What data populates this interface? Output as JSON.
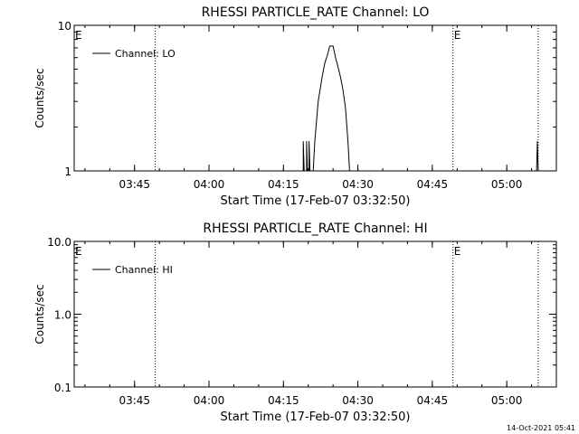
{
  "colors": {
    "background": "#ffffff",
    "foreground": "#000000"
  },
  "footer": {
    "timestamp": "14-Oct-2021 05:41"
  },
  "chart_data": [
    {
      "type": "line",
      "title": "RHESSI PARTICLE_RATE Channel: LO",
      "xlabel": "Start Time (17-Feb-07 03:32:50)",
      "ylabel": "Counts/sec",
      "y_scale": "log",
      "ylim": [
        1,
        10
      ],
      "y_ticks": [
        1,
        10
      ],
      "y_tick_labels": [
        "1",
        "10"
      ],
      "xlim": [
        "03:32:50",
        "05:10:00"
      ],
      "x_ticks": [
        "03:45",
        "04:00",
        "04:15",
        "04:30",
        "04:45",
        "05:00"
      ],
      "event_lines": [
        "03:49:10",
        "04:49:10",
        "05:06:20"
      ],
      "event_markers": [
        {
          "time": "03:32:50",
          "label": "E"
        },
        {
          "time": "04:49:10",
          "label": "E"
        }
      ],
      "legend": {
        "position": "top-left",
        "entries": [
          "Channel: LO"
        ]
      },
      "series": [
        {
          "name": "Channel: LO",
          "points": [
            [
              "04:19:00",
              1.0
            ],
            [
              "04:19:00",
              1.6
            ],
            [
              "04:19:10",
              1.0
            ],
            [
              "04:19:40",
              1.0
            ],
            [
              "04:19:40",
              1.6
            ],
            [
              "04:19:50",
              1.0
            ],
            [
              "04:20:10",
              1.0
            ],
            [
              "04:20:10",
              1.6
            ],
            [
              "04:20:20",
              1.0
            ],
            [
              "04:21:00",
              1.0
            ],
            [
              "04:21:20",
              1.6
            ],
            [
              "04:22:00",
              3.0
            ],
            [
              "04:22:50",
              4.5
            ],
            [
              "04:23:20",
              5.5
            ],
            [
              "04:23:50",
              6.2
            ],
            [
              "04:24:20",
              7.2
            ],
            [
              "04:25:00",
              7.2
            ],
            [
              "04:25:30",
              6.0
            ],
            [
              "04:26:00",
              5.2
            ],
            [
              "04:26:30",
              4.4
            ],
            [
              "04:27:00",
              3.6
            ],
            [
              "04:27:30",
              2.7
            ],
            [
              "04:28:00",
              1.6
            ],
            [
              "04:28:20",
              1.0
            ],
            [
              "05:06:00",
              1.0
            ],
            [
              "05:06:10",
              1.6
            ],
            [
              "05:06:20",
              1.0
            ]
          ]
        }
      ]
    },
    {
      "type": "line",
      "title": "RHESSI PARTICLE_RATE Channel: HI",
      "xlabel": "Start Time (17-Feb-07 03:32:50)",
      "ylabel": "Counts/sec",
      "y_scale": "log",
      "ylim": [
        0.1,
        10
      ],
      "y_ticks": [
        0.1,
        1,
        10
      ],
      "y_tick_labels": [
        "0.1",
        "1.0",
        "10.0"
      ],
      "xlim": [
        "03:32:50",
        "05:10:00"
      ],
      "x_ticks": [
        "03:45",
        "04:00",
        "04:15",
        "04:30",
        "04:45",
        "05:00"
      ],
      "event_lines": [
        "03:49:10",
        "04:49:10",
        "05:06:20"
      ],
      "event_markers": [
        {
          "time": "03:32:50",
          "label": "E"
        },
        {
          "time": "04:49:10",
          "label": "E"
        }
      ],
      "legend": {
        "position": "top-left",
        "entries": [
          "Channel: HI"
        ]
      },
      "series": [
        {
          "name": "Channel: HI",
          "points": []
        }
      ]
    }
  ]
}
